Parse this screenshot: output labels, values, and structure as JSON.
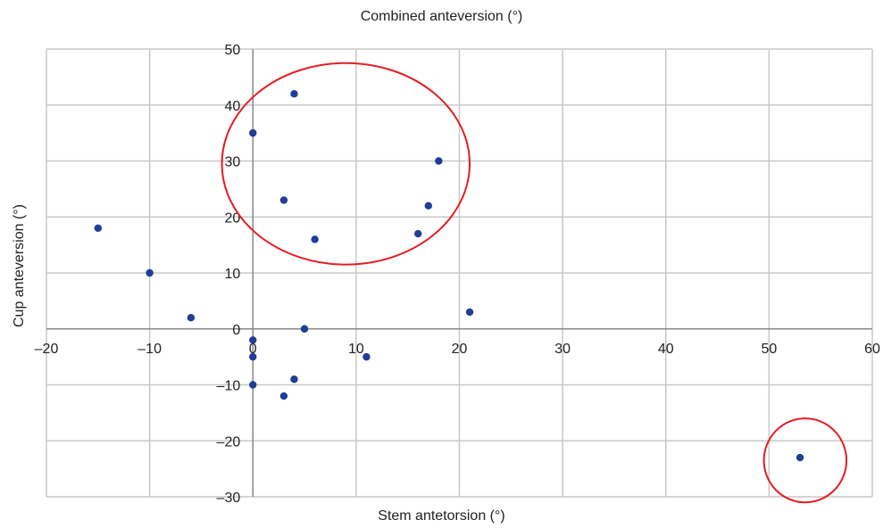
{
  "chart_data": {
    "type": "scatter",
    "title": "Combined anteversion (°)",
    "xlabel": "Stem antetorsion (°)",
    "ylabel": "Cup anteversion (°)",
    "xlim": [
      -20,
      60
    ],
    "ylim": [
      -30,
      50
    ],
    "xticks": [
      -20,
      -10,
      0,
      10,
      20,
      30,
      40,
      50,
      60
    ],
    "yticks": [
      -30,
      -20,
      -10,
      0,
      10,
      20,
      30,
      40,
      50
    ],
    "xtick_labels": [
      "–20",
      "–10",
      "0",
      "10",
      "20",
      "30",
      "40",
      "50",
      "60"
    ],
    "ytick_labels": [
      "–30",
      "–20",
      "–10",
      "0",
      "10",
      "20",
      "30",
      "40",
      "50"
    ],
    "grid": true,
    "series": [
      {
        "x": [
          -15,
          -10,
          -6,
          0,
          0,
          0,
          0,
          3,
          3,
          4,
          4,
          5,
          6,
          11,
          16,
          17,
          18,
          21,
          53
        ],
        "y": [
          18,
          10,
          2,
          35,
          -2,
          -5,
          -10,
          23,
          -12,
          42,
          -9,
          0,
          16,
          -5,
          17,
          22,
          30,
          3,
          -23
        ]
      }
    ],
    "annotations": [
      {
        "type": "ellipse",
        "cx": 9,
        "cy": 29.5,
        "rx": 12,
        "ry": 18,
        "color": "#e31e24"
      },
      {
        "type": "ellipse",
        "cx": 53.5,
        "cy": -23.5,
        "rx": 4,
        "ry": 7.5,
        "color": "#e31e24"
      }
    ],
    "colors": {
      "point": "#1f3d99",
      "grid": "#c8c8c8",
      "axis": "#888888",
      "annotation": "#e31e24"
    }
  }
}
